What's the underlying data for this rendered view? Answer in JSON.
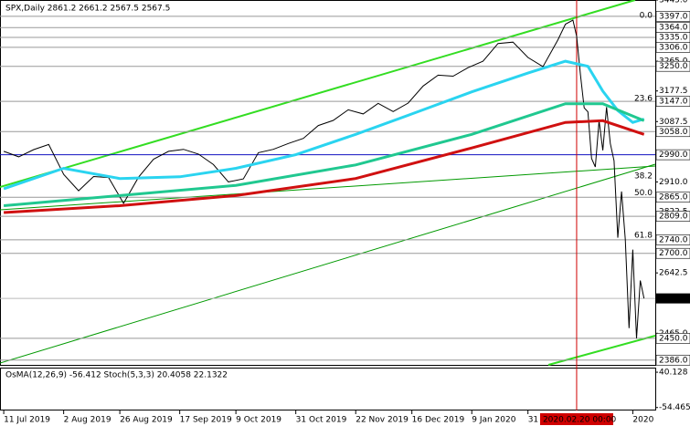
{
  "chart_data": {
    "type": "line",
    "title": "SPX,Daily  2861.2 2661.2 2567.5 2567.5",
    "xlim": [
      -1,
      174
    ],
    "ylim": [
      2372,
      3445
    ],
    "xticks": [
      {
        "value": 0,
        "label": "11 Jul 2019"
      },
      {
        "value": 16,
        "label": "2 Aug 2019"
      },
      {
        "value": 31,
        "label": "26 Aug 2019"
      },
      {
        "value": 47,
        "label": "17 Sep 2019"
      },
      {
        "value": 62,
        "label": "9 Oct 2019"
      },
      {
        "value": 78,
        "label": "31 Oct 2019"
      },
      {
        "value": 94,
        "label": "22 Nov 2019"
      },
      {
        "value": 109,
        "label": "16 Dec 2019"
      },
      {
        "value": 125,
        "label": "9 Jan 2020"
      },
      {
        "value": 140,
        "label": "31 Jan 2020"
      },
      {
        "value": 168,
        "label": "2020"
      }
    ],
    "yticks": [
      {
        "value": 3445,
        "label": "3445.0"
      },
      {
        "value": 3265,
        "label": "3265.0"
      },
      {
        "value": 3177.5,
        "label": "3177.5"
      },
      {
        "value": 3087.5,
        "label": "3087.5"
      },
      {
        "value": 2910,
        "label": "2910.0"
      },
      {
        "value": 2822.5,
        "label": "2822.5"
      },
      {
        "value": 2642.5,
        "label": "2642.5"
      },
      {
        "value": 2465,
        "label": "2465.0"
      }
    ],
    "level_ticks": [
      {
        "value": 3397,
        "label": "3397.0"
      },
      {
        "value": 3364,
        "label": "3364.0"
      },
      {
        "value": 3335,
        "label": "3335.0"
      },
      {
        "value": 3306,
        "label": "3306.0"
      },
      {
        "value": 3250,
        "label": "3250.0"
      },
      {
        "value": 3147,
        "label": "3147.0"
      },
      {
        "value": 3058,
        "label": "3058.0"
      },
      {
        "value": 2990,
        "label": "2990.0"
      },
      {
        "value": 2865,
        "label": "2865.0"
      },
      {
        "value": 2809,
        "label": "2809.0"
      },
      {
        "value": 2740,
        "label": "2740.0"
      },
      {
        "value": 2700,
        "label": "2700.0"
      },
      {
        "value": 2450,
        "label": "2450.0"
      },
      {
        "value": 2386,
        "label": "2386.0"
      }
    ],
    "last_price": {
      "value": 2567.5,
      "label": "2567.5"
    },
    "event": {
      "x": 153,
      "label": "2020.02.20 00:00",
      "color": "#d00000"
    },
    "fib_labels": [
      {
        "y": 3400,
        "label": "0.0"
      },
      {
        "y": 3155,
        "label": "23.6"
      },
      {
        "y": 2927,
        "label": "38.2"
      },
      {
        "y": 2877,
        "label": "50.0"
      },
      {
        "y": 2753,
        "label": "61.8"
      }
    ],
    "series": [
      {
        "color": "#000000",
        "x": [
          0,
          4,
          8,
          12,
          16,
          20,
          24,
          28,
          32,
          36,
          40,
          44,
          48,
          52,
          56,
          60,
          64,
          68,
          72,
          76,
          80,
          84,
          88,
          92,
          96,
          100,
          104,
          108,
          112,
          116,
          120,
          124,
          128,
          132,
          136,
          140,
          144,
          148,
          150,
          152,
          153,
          154,
          155,
          156,
          157,
          158,
          159,
          160,
          161,
          162,
          163,
          164,
          165,
          166,
          167,
          168,
          169,
          170,
          171
        ],
        "values": [
          3000,
          2984,
          3005,
          3020,
          2932,
          2884,
          2926,
          2923,
          2847,
          2924,
          2977,
          3000,
          3006,
          2992,
          2961,
          2910,
          2919,
          2996,
          3006,
          3023,
          3038,
          3076,
          3091,
          3122,
          3110,
          3141,
          3117,
          3142,
          3192,
          3224,
          3221,
          3246,
          3265,
          3317,
          3321,
          3276,
          3249,
          3328,
          3374,
          3386,
          3338,
          3226,
          3128,
          3116,
          2979,
          2954,
          3090,
          3003,
          3130,
          3023,
          2972,
          2746,
          2882,
          2741,
          2480,
          2711,
          2450,
          2620,
          2567.5
        ]
      },
      {
        "color": "#2ad4f0",
        "x": [
          0,
          16,
          31,
          47,
          62,
          78,
          94,
          109,
          125,
          140,
          150,
          156,
          160,
          164,
          168,
          171
        ],
        "values": [
          2890,
          2950,
          2920,
          2925,
          2950,
          2990,
          3050,
          3110,
          3175,
          3230,
          3265,
          3250,
          3177,
          3120,
          3085,
          3095
        ]
      },
      {
        "color": "#20c890",
        "x": [
          0,
          31,
          62,
          94,
          125,
          150,
          160,
          171
        ],
        "values": [
          2840,
          2870,
          2900,
          2960,
          3050,
          3140,
          3140,
          3090
        ]
      },
      {
        "color": "#d01010",
        "x": [
          0,
          31,
          62,
          94,
          125,
          150,
          160,
          171
        ],
        "values": [
          2820,
          2840,
          2870,
          2920,
          3010,
          3085,
          3090,
          3050
        ]
      }
    ],
    "indicator": {
      "label": "OsMA(12,26,9) -56.412  Stoch(5,3,3) 20.4058 22.1322",
      "ylim": [
        -60,
        50
      ],
      "yticks": [
        40.128,
        -54.465
      ]
    }
  }
}
